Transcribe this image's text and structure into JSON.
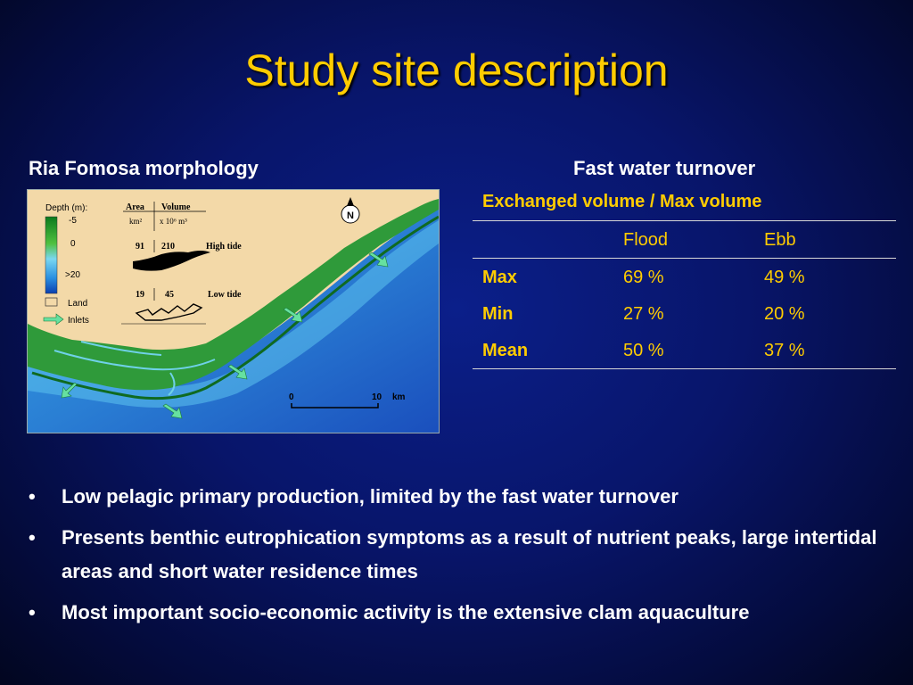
{
  "slide": {
    "title": "Study site description"
  },
  "map": {
    "heading": "Ria Fomosa morphology",
    "legend": {
      "title": "Depth (m):",
      "depth_top": "-5",
      "depth_mid": "0",
      "depth_bottom": ">20",
      "land": "Land",
      "inlets": "Inlets"
    },
    "inset": {
      "col_area": "Area",
      "col_volume": "Volume",
      "unit_area": "km²",
      "unit_volume": "x 10⁶ m³",
      "high_area": "91",
      "high_volume": "210",
      "high_label": "High tide",
      "low_area": "19",
      "low_volume": "45",
      "low_label": "Low tide"
    },
    "north_label": "N",
    "scale_start": "0",
    "scale_end": "10",
    "scale_unit": "km",
    "colors": {
      "land": "#f3d9a8",
      "shallow_water": "#2e8fd6",
      "deep_water": "#1b56c2",
      "lagoon": "#2f9a3a",
      "inlet_arrow": "#66e0a0"
    }
  },
  "turnover": {
    "heading": "Fast water turnover",
    "caption": "Exchanged volume / Max volume",
    "columns": [
      "",
      "Flood",
      "Ebb"
    ],
    "rows": [
      [
        "Max",
        "69 %",
        "49 %"
      ],
      [
        "Min",
        "27 %",
        "20 %"
      ],
      [
        "Mean",
        "50 %",
        "37 %"
      ]
    ]
  },
  "bullets": [
    "Low pelagic primary production, limited by the fast water turnover",
    "Presents benthic eutrophication symptoms as a result of nutrient peaks, large intertidal areas and short water residence times",
    "Most important socio-economic activity is the extensive clam aquaculture"
  ]
}
